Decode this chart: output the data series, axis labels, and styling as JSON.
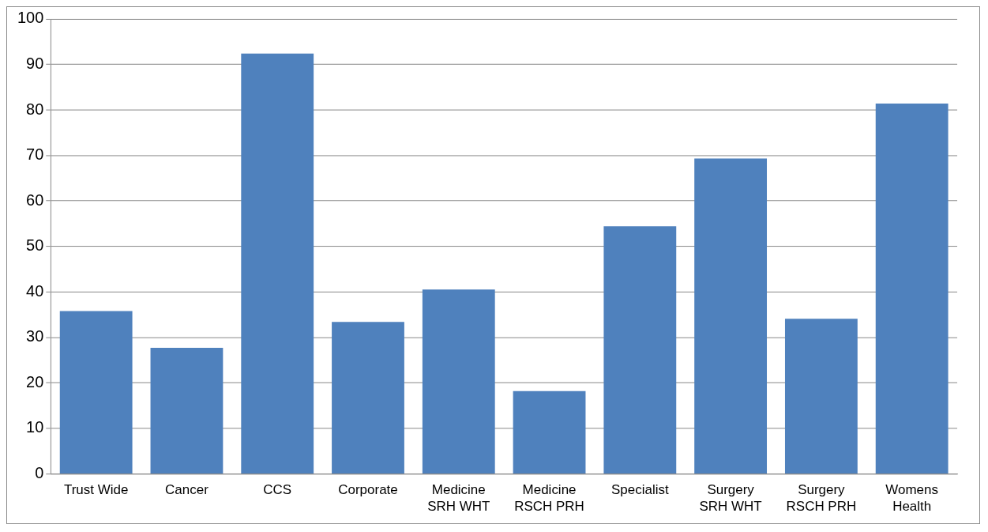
{
  "chart_data": {
    "type": "bar",
    "categories": [
      "Trust Wide",
      "Cancer",
      "CCS",
      "Corporate",
      "Medicine SRH WHT",
      "Medicine RSCH PRH",
      "Specialist",
      "Surgery SRH WHT",
      "Surgery RSCH PRH",
      "Womens Health"
    ],
    "values": [
      35.8,
      27.7,
      92.4,
      33.4,
      40.5,
      18.2,
      54.4,
      69.3,
      34.1,
      81.4
    ],
    "color": "#4f81bd",
    "ylim": [
      0,
      100
    ],
    "yticks": [
      0,
      10,
      20,
      30,
      40,
      50,
      60,
      70,
      80,
      90,
      100
    ],
    "grid": "y",
    "legend": false
  }
}
